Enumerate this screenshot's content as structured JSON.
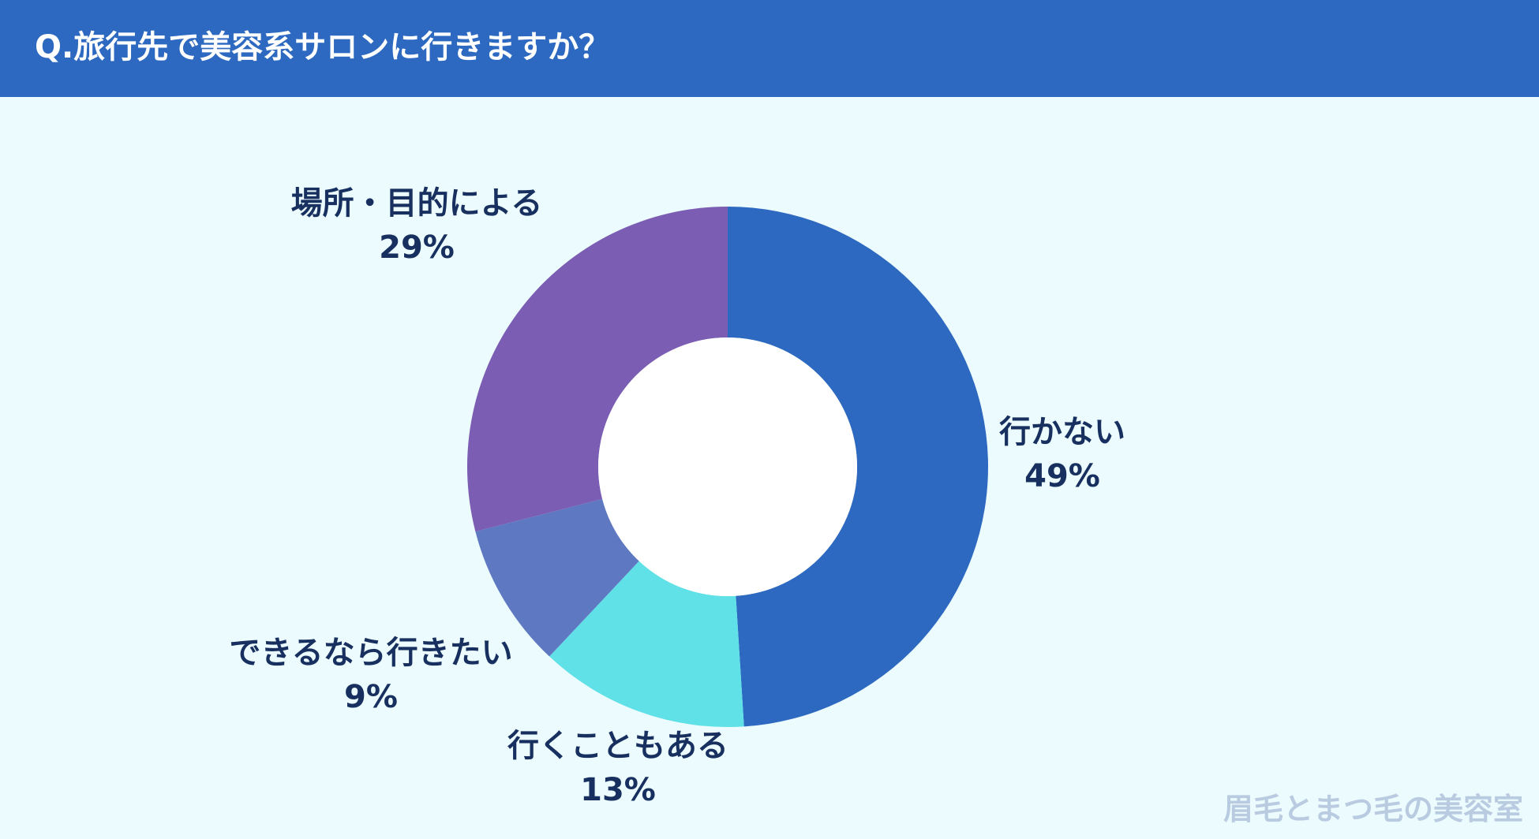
{
  "header": {
    "title": "Q.旅行先で美容系サロンに行きますか？"
  },
  "colors": {
    "header_bg": "#2d69c0",
    "page_bg": "#ecfbfd",
    "label_text": "#17305f"
  },
  "chart_data": {
    "type": "pie",
    "style": "donut",
    "title": "Q.旅行先で美容系サロンに行きますか？",
    "slices": [
      {
        "label": "行かない",
        "value": 49,
        "value_label": "49%",
        "color": "#2d69c0"
      },
      {
        "label": "行くこともある",
        "value": 13,
        "value_label": "13%",
        "color": "#5fe1e7"
      },
      {
        "label": "できるなら行きたい",
        "value": 9,
        "value_label": "9%",
        "color": "#5f78c2"
      },
      {
        "label": "場所・目的による",
        "value": 29,
        "value_label": "29%",
        "color": "#7b5db3"
      }
    ]
  },
  "watermark": {
    "text": "眉毛とまつ毛の美容室"
  }
}
